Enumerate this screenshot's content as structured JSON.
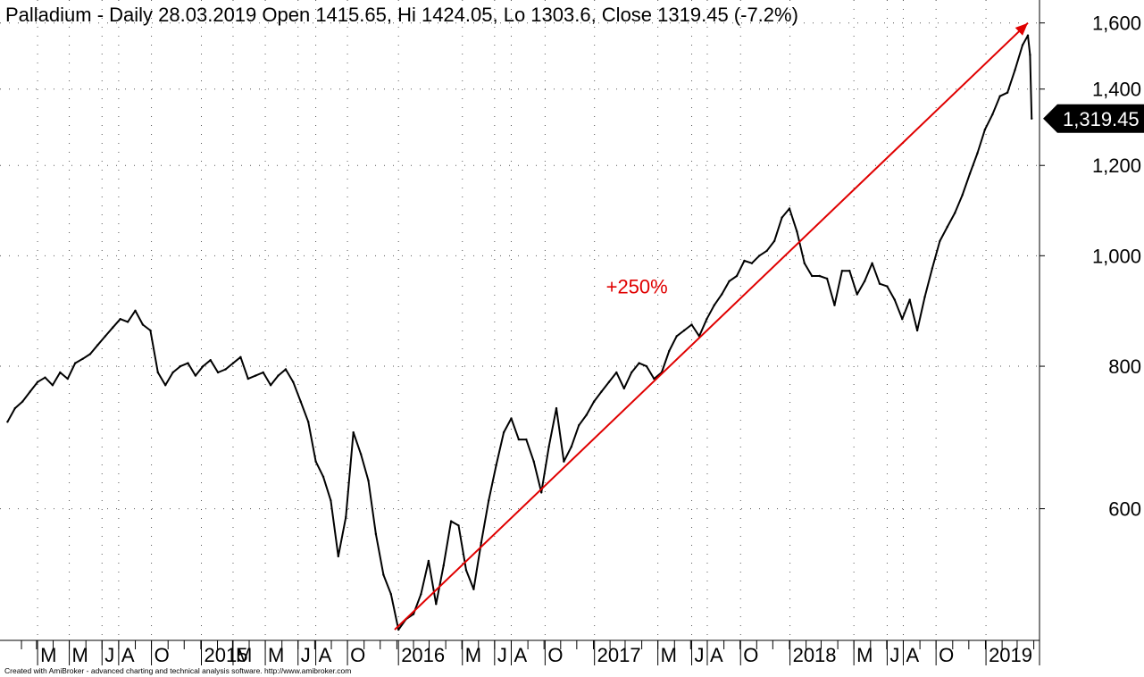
{
  "title": "Palladium - Daily 28.03.2019 Open 1415.65, Hi 1424.05, Lo 1303.6, Close 1319.45 (-7.2%)",
  "credit": "Created with AmiBroker - advanced charting and technical analysis software. http://www.amibroker.com",
  "colors": {
    "price": "#000000",
    "trendline": "#e00000",
    "grid": "#555555",
    "last_badge": "#000000"
  },
  "chart_data": {
    "type": "line",
    "scale": "log",
    "ylim": [
      470,
      1640
    ],
    "y_ticks": [
      {
        "value": 600,
        "label": "600"
      },
      {
        "value": 800,
        "label": "800"
      },
      {
        "value": 1000,
        "label": "1,000"
      },
      {
        "value": 1200,
        "label": "1,200"
      },
      {
        "value": 1400,
        "label": "1,400"
      },
      {
        "value": 1600,
        "label": "1,600"
      }
    ],
    "x_ticks": [
      {
        "date": "2014-03-03",
        "label": "M"
      },
      {
        "date": "2014-05-01",
        "label": "M"
      },
      {
        "date": "2014-07-01",
        "label": "J"
      },
      {
        "date": "2014-08-01",
        "label": "A"
      },
      {
        "date": "2014-10-01",
        "label": "O"
      },
      {
        "date": "2015-01-02",
        "label": "2015"
      },
      {
        "date": "2015-03-02",
        "label": "M"
      },
      {
        "date": "2015-05-01",
        "label": "M"
      },
      {
        "date": "2015-07-01",
        "label": "J"
      },
      {
        "date": "2015-08-03",
        "label": "A"
      },
      {
        "date": "2015-10-01",
        "label": "O"
      },
      {
        "date": "2016-01-04",
        "label": "2016"
      },
      {
        "date": "2016-05-02",
        "label": "M"
      },
      {
        "date": "2016-07-01",
        "label": "J"
      },
      {
        "date": "2016-08-01",
        "label": "A"
      },
      {
        "date": "2016-10-03",
        "label": "O"
      },
      {
        "date": "2017-01-03",
        "label": "2017"
      },
      {
        "date": "2017-05-01",
        "label": "M"
      },
      {
        "date": "2017-07-03",
        "label": "J"
      },
      {
        "date": "2017-08-01",
        "label": "A"
      },
      {
        "date": "2017-10-02",
        "label": "O"
      },
      {
        "date": "2018-01-02",
        "label": "2018"
      },
      {
        "date": "2018-05-01",
        "label": "M"
      },
      {
        "date": "2018-07-02",
        "label": "J"
      },
      {
        "date": "2018-08-01",
        "label": "A"
      },
      {
        "date": "2018-10-01",
        "label": "O"
      },
      {
        "date": "2019-01-02",
        "label": "2019"
      }
    ],
    "x_range": [
      "2014-01-02",
      "2019-04-05"
    ],
    "series": [
      {
        "x": [
          "2014-01-06",
          "2014-01-20",
          "2014-02-03",
          "2014-02-17",
          "2014-03-03",
          "2014-03-17",
          "2014-03-31",
          "2014-04-14",
          "2014-04-28",
          "2014-05-12",
          "2014-05-26",
          "2014-06-09",
          "2014-06-23",
          "2014-07-07",
          "2014-07-21",
          "2014-08-04",
          "2014-08-18",
          "2014-09-01",
          "2014-09-15",
          "2014-09-29",
          "2014-10-13",
          "2014-10-27",
          "2014-11-10",
          "2014-11-24",
          "2014-12-08",
          "2014-12-22",
          "2015-01-05",
          "2015-01-19",
          "2015-02-02",
          "2015-02-16",
          "2015-03-02",
          "2015-03-16",
          "2015-03-30",
          "2015-04-13",
          "2015-04-27",
          "2015-05-11",
          "2015-05-25",
          "2015-06-08",
          "2015-06-22",
          "2015-07-06",
          "2015-07-20",
          "2015-08-03",
          "2015-08-17",
          "2015-08-31",
          "2015-09-14",
          "2015-09-28",
          "2015-10-12",
          "2015-10-26",
          "2015-11-09",
          "2015-11-23",
          "2015-12-07",
          "2015-12-21",
          "2016-01-04",
          "2016-01-18",
          "2016-02-01",
          "2016-02-15",
          "2016-02-29",
          "2016-03-14",
          "2016-03-28",
          "2016-04-11",
          "2016-04-25",
          "2016-05-09",
          "2016-05-23",
          "2016-06-06",
          "2016-06-20",
          "2016-07-04",
          "2016-07-18",
          "2016-08-01",
          "2016-08-15",
          "2016-08-29",
          "2016-09-12",
          "2016-09-26",
          "2016-10-10",
          "2016-10-24",
          "2016-11-07",
          "2016-11-21",
          "2016-12-05",
          "2016-12-19",
          "2017-01-02",
          "2017-01-16",
          "2017-01-30",
          "2017-02-13",
          "2017-02-27",
          "2017-03-13",
          "2017-03-27",
          "2017-04-10",
          "2017-04-24",
          "2017-05-08",
          "2017-05-22",
          "2017-06-05",
          "2017-06-19",
          "2017-07-03",
          "2017-07-17",
          "2017-07-31",
          "2017-08-14",
          "2017-08-28",
          "2017-09-11",
          "2017-09-25",
          "2017-10-09",
          "2017-10-23",
          "2017-11-06",
          "2017-11-20",
          "2017-12-04",
          "2017-12-18",
          "2018-01-01",
          "2018-01-15",
          "2018-01-29",
          "2018-02-12",
          "2018-02-26",
          "2018-03-12",
          "2018-03-26",
          "2018-04-09",
          "2018-04-23",
          "2018-05-07",
          "2018-05-21",
          "2018-06-04",
          "2018-06-18",
          "2018-07-02",
          "2018-07-16",
          "2018-07-30",
          "2018-08-13",
          "2018-08-27",
          "2018-09-10",
          "2018-09-24",
          "2018-10-08",
          "2018-10-22",
          "2018-11-05",
          "2018-11-19",
          "2018-12-03",
          "2018-12-17",
          "2018-12-31",
          "2019-01-14",
          "2019-01-28",
          "2019-02-11",
          "2019-02-25",
          "2019-03-11",
          "2019-03-21",
          "2019-03-25",
          "2019-03-28"
        ],
        "values": [
          715,
          735,
          745,
          760,
          775,
          782,
          770,
          790,
          780,
          805,
          812,
          820,
          835,
          850,
          865,
          880,
          875,
          895,
          870,
          860,
          790,
          770,
          790,
          800,
          805,
          785,
          800,
          810,
          790,
          795,
          805,
          815,
          780,
          785,
          790,
          770,
          785,
          795,
          775,
          745,
          715,
          660,
          640,
          610,
          545,
          590,
          700,
          670,
          635,
          570,
          525,
          505,
          470,
          480,
          485,
          505,
          540,
          495,
          535,
          585,
          580,
          530,
          510,
          560,
          610,
          655,
          700,
          720,
          690,
          690,
          660,
          620,
          680,
          735,
          660,
          680,
          710,
          725,
          745,
          760,
          775,
          790,
          765,
          790,
          805,
          800,
          780,
          790,
          825,
          850,
          860,
          870,
          850,
          880,
          905,
          925,
          950,
          960,
          990,
          985,
          1000,
          1010,
          1030,
          1080,
          1100,
          1050,
          985,
          960,
          960,
          955,
          905,
          970,
          970,
          925,
          950,
          985,
          945,
          940,
          915,
          880,
          915,
          860,
          920,
          975,
          1030,
          1060,
          1090,
          1130,
          1180,
          1230,
          1290,
          1330,
          1380,
          1390,
          1455,
          1530,
          1560,
          1500,
          1319
        ]
      }
    ],
    "trendline": {
      "from": {
        "x": "2015-12-28",
        "y": 470
      },
      "to": {
        "x": "2019-03-21",
        "y": 1600
      }
    },
    "annotations": [
      {
        "text": "+250%",
        "x": "2017-04-01",
        "y": 940
      }
    ],
    "last_value_label": "1,319.45",
    "grid": true
  }
}
